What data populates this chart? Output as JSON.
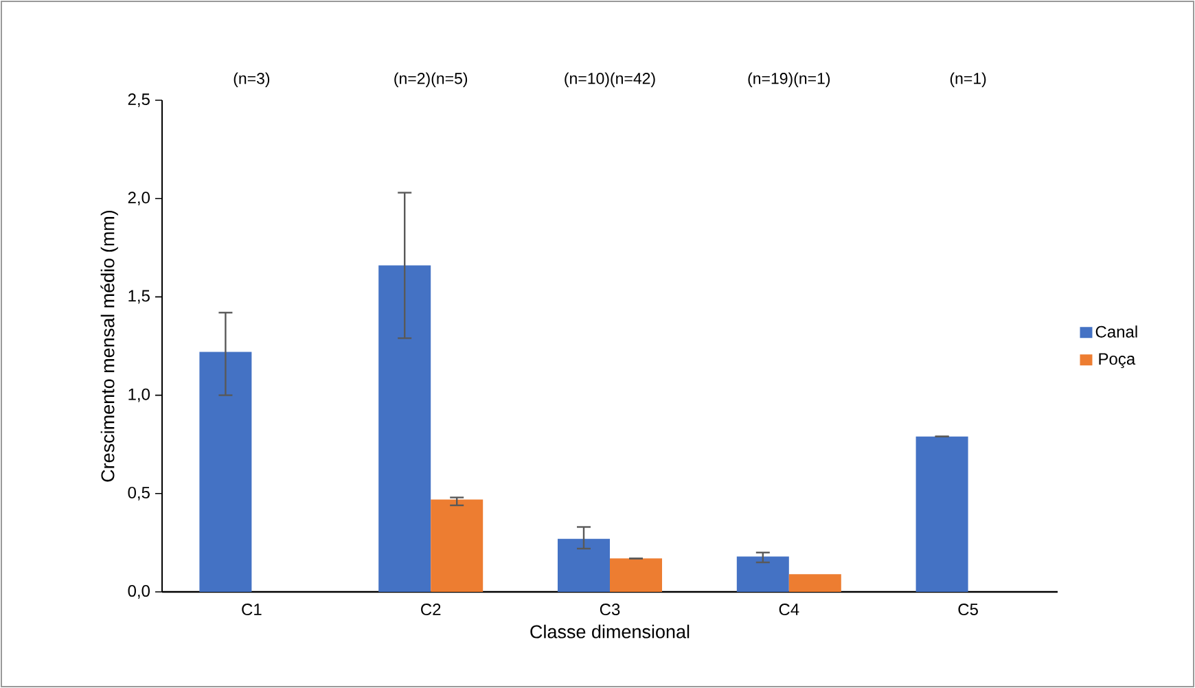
{
  "chart_data": {
    "type": "bar",
    "xlabel": "Classe dimensional",
    "ylabel": "Crescimento mensal médio (mm)",
    "categories": [
      "C1",
      "C2",
      "C3",
      "C4",
      "C5"
    ],
    "annotations": [
      "(n=3)",
      "(n=2)(n=5)",
      "(n=10)(n=42)",
      "(n=19)(n=1)",
      "(n=1)"
    ],
    "series": [
      {
        "name": "Canal",
        "color": "#4472c4",
        "values": [
          1.22,
          1.66,
          0.27,
          0.18,
          0.79
        ],
        "errors": [
          [
            1.0,
            1.42
          ],
          [
            1.29,
            2.03
          ],
          [
            0.22,
            0.33
          ],
          [
            0.15,
            0.2
          ],
          [
            0.79,
            0.79
          ]
        ]
      },
      {
        "name": "Poça",
        "color": "#ed7d31",
        "values": [
          null,
          0.47,
          0.17,
          0.09,
          null
        ],
        "errors": [
          null,
          [
            0.44,
            0.48
          ],
          [
            0.17,
            0.17
          ],
          null,
          null
        ]
      }
    ],
    "ylim": [
      0,
      2.5
    ],
    "yticks": [
      {
        "value": 0,
        "label": "0,0"
      },
      {
        "value": 0.5,
        "label": "0,5"
      },
      {
        "value": 1.0,
        "label": "1,0"
      },
      {
        "value": 1.5,
        "label": "1,5"
      },
      {
        "value": 2.0,
        "label": "2,0"
      },
      {
        "value": 2.5,
        "label": "2,5"
      }
    ],
    "legend": "right",
    "grid": false
  }
}
